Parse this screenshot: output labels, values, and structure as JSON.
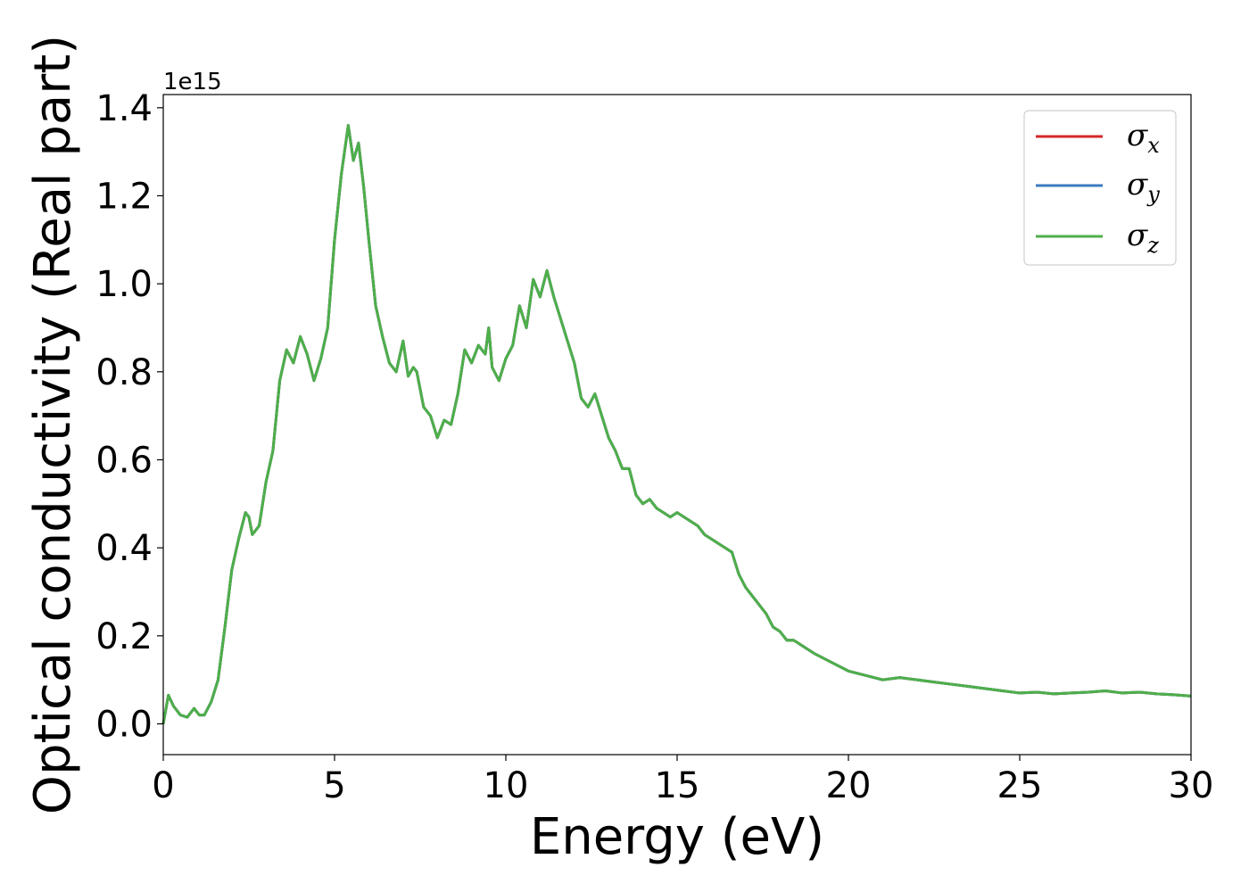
{
  "chart_data": {
    "type": "line",
    "xlabel": "Energy (eV)",
    "ylabel": "Optical conductivity (Real part)",
    "y_offset_label": "1e15",
    "xlim": [
      0,
      30
    ],
    "ylim": [
      -0.07,
      1.43
    ],
    "x_ticks": [
      0,
      5,
      10,
      15,
      20,
      25,
      30
    ],
    "x_tick_labels": [
      "0",
      "5",
      "10",
      "15",
      "20",
      "25",
      "30"
    ],
    "y_ticks": [
      0.0,
      0.2,
      0.4,
      0.6,
      0.8,
      1.0,
      1.2,
      1.4
    ],
    "y_tick_labels": [
      "0.0",
      "0.2",
      "0.4",
      "0.6",
      "0.8",
      "1.0",
      "1.2",
      "1.4"
    ],
    "grid": false,
    "legend_position": "top-right",
    "series": [
      {
        "name": "σ",
        "subscript": "x",
        "color": "#d62728",
        "ref": "shared"
      },
      {
        "name": "σ",
        "subscript": "y",
        "color": "#3a7bbf",
        "ref": "shared"
      },
      {
        "name": "σ",
        "subscript": "z",
        "color": "#4daf4a",
        "ref": "shared"
      }
    ],
    "shared_curve": {
      "x": [
        0,
        0.15,
        0.3,
        0.5,
        0.7,
        0.9,
        1.05,
        1.2,
        1.4,
        1.6,
        1.8,
        2.0,
        2.2,
        2.4,
        2.5,
        2.6,
        2.8,
        3.0,
        3.2,
        3.4,
        3.6,
        3.8,
        4.0,
        4.2,
        4.4,
        4.6,
        4.8,
        5.0,
        5.2,
        5.4,
        5.55,
        5.7,
        5.85,
        6.0,
        6.2,
        6.4,
        6.6,
        6.8,
        7.0,
        7.15,
        7.3,
        7.4,
        7.6,
        7.8,
        8.0,
        8.2,
        8.4,
        8.6,
        8.8,
        9.0,
        9.2,
        9.4,
        9.5,
        9.6,
        9.8,
        10.0,
        10.2,
        10.4,
        10.6,
        10.8,
        11.0,
        11.2,
        11.4,
        11.6,
        11.8,
        12.0,
        12.2,
        12.4,
        12.6,
        12.8,
        13.0,
        13.2,
        13.4,
        13.6,
        13.8,
        14.0,
        14.2,
        14.4,
        14.6,
        14.8,
        15.0,
        15.2,
        15.4,
        15.6,
        15.8,
        16.0,
        16.2,
        16.4,
        16.6,
        16.8,
        17.0,
        17.2,
        17.4,
        17.6,
        17.8,
        18.0,
        18.2,
        18.4,
        18.6,
        18.8,
        19.0,
        19.5,
        20.0,
        20.5,
        21.0,
        21.5,
        22.0,
        22.5,
        23.0,
        23.5,
        24.0,
        24.5,
        25.0,
        25.5,
        26.0,
        26.5,
        27.0,
        27.5,
        28.0,
        28.5,
        29.0,
        29.5,
        30.0
      ],
      "y": [
        0.0,
        0.065,
        0.04,
        0.02,
        0.015,
        0.035,
        0.02,
        0.02,
        0.05,
        0.1,
        0.22,
        0.35,
        0.42,
        0.48,
        0.47,
        0.43,
        0.45,
        0.55,
        0.62,
        0.78,
        0.85,
        0.82,
        0.88,
        0.84,
        0.78,
        0.83,
        0.9,
        1.1,
        1.25,
        1.36,
        1.28,
        1.32,
        1.22,
        1.1,
        0.95,
        0.88,
        0.82,
        0.8,
        0.87,
        0.79,
        0.81,
        0.8,
        0.72,
        0.7,
        0.65,
        0.69,
        0.68,
        0.75,
        0.85,
        0.82,
        0.86,
        0.84,
        0.9,
        0.81,
        0.78,
        0.83,
        0.86,
        0.95,
        0.9,
        1.01,
        0.97,
        1.03,
        0.97,
        0.92,
        0.87,
        0.82,
        0.74,
        0.72,
        0.75,
        0.7,
        0.65,
        0.62,
        0.58,
        0.58,
        0.52,
        0.5,
        0.51,
        0.49,
        0.48,
        0.47,
        0.48,
        0.47,
        0.46,
        0.45,
        0.43,
        0.42,
        0.41,
        0.4,
        0.39,
        0.34,
        0.31,
        0.29,
        0.27,
        0.25,
        0.22,
        0.21,
        0.19,
        0.19,
        0.18,
        0.17,
        0.16,
        0.14,
        0.12,
        0.11,
        0.1,
        0.105,
        0.1,
        0.095,
        0.09,
        0.085,
        0.08,
        0.075,
        0.07,
        0.072,
        0.068,
        0.07,
        0.072,
        0.075,
        0.07,
        0.072,
        0.068,
        0.066,
        0.063
      ]
    }
  }
}
